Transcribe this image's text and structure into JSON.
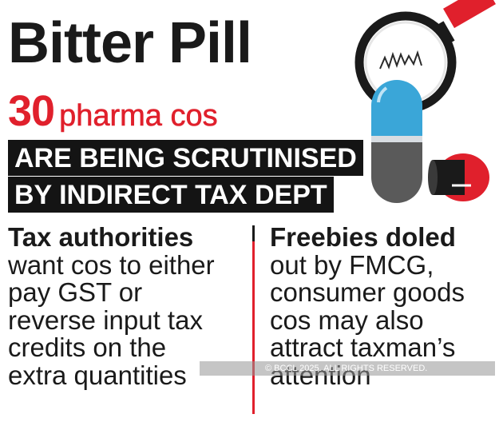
{
  "title": "Bitter Pill",
  "subtitle": {
    "number": "30",
    "text": "pharma cos"
  },
  "band": {
    "line1": "ARE BEING SCRUTINISED",
    "line2": "BY INDIRECT TAX DEPT"
  },
  "left_column": {
    "heading": "Tax authorities",
    "lines": [
      "want cos to either",
      "pay GST or",
      "reverse input tax",
      "credits on the",
      "extra quantities"
    ]
  },
  "right_column": {
    "heading_lines": [
      "Freebies doled"
    ],
    "lines": [
      "out by FMCG,",
      "consumer goods",
      "cos may also",
      "attract taxman’s",
      "attention"
    ]
  },
  "watermark": "© BCCL 2025. ALL RIGHTS RESERVED.",
  "colors": {
    "accent_red": "#e0202c",
    "band_black": "#141414",
    "pill_blue": "#3aa6d8",
    "pill_grey": "#5a5a5a"
  },
  "illustration": {
    "icons": [
      "magnifying-glass-icon",
      "capsule-icon",
      "pill-icon"
    ]
  }
}
